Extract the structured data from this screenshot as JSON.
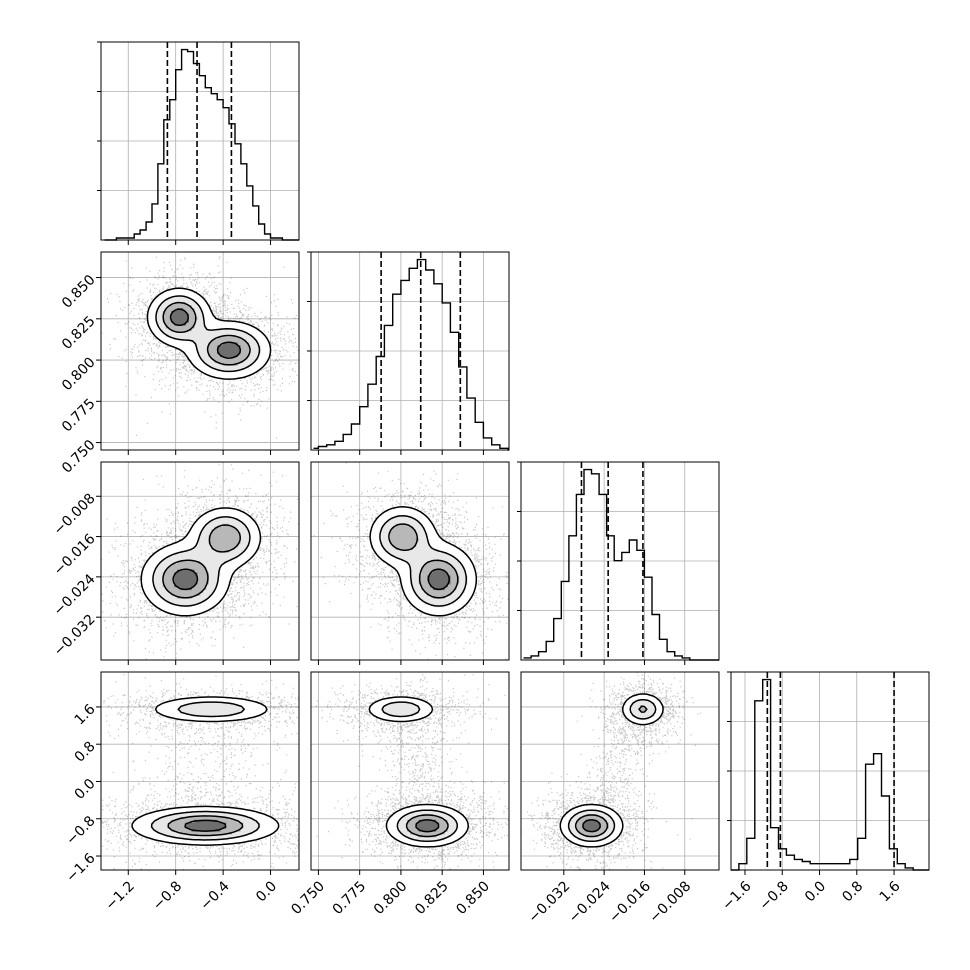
{
  "chart_data": {
    "type": "corner",
    "parameters": 4,
    "grid": true,
    "histograms": [
      {
        "param": 0,
        "bins": [
          -1.4,
          -1.35,
          -1.3,
          -1.25,
          -1.2,
          -1.15,
          -1.1,
          -1.05,
          -1.0,
          -0.95,
          -0.9,
          -0.85,
          -0.8,
          -0.75,
          -0.7,
          -0.65,
          -0.6,
          -0.55,
          -0.5,
          -0.45,
          -0.4,
          -0.35,
          -0.3,
          -0.25,
          -0.2,
          -0.15,
          -0.1,
          -0.05,
          0.0,
          0.05,
          0.1,
          0.15,
          0.2,
          0.25
        ],
        "counts": [
          0,
          0,
          1,
          1,
          1,
          3,
          5,
          9,
          18,
          38,
          60,
          70,
          85,
          95,
          94,
          88,
          82,
          76,
          73,
          70,
          66,
          58,
          48,
          38,
          27,
          17,
          8,
          3,
          1,
          1,
          0,
          0,
          0
        ],
        "quantiles": [
          -0.87,
          -0.62,
          -0.33
        ]
      },
      {
        "param": 1,
        "bins": [
          0.747,
          0.75,
          0.755,
          0.76,
          0.765,
          0.77,
          0.775,
          0.78,
          0.785,
          0.79,
          0.795,
          0.8,
          0.805,
          0.81,
          0.815,
          0.82,
          0.825,
          0.83,
          0.835,
          0.84,
          0.845,
          0.85,
          0.855,
          0.86,
          0.865,
          0.87
        ],
        "counts": [
          1,
          2,
          3,
          5,
          9,
          15,
          25,
          38,
          54,
          72,
          90,
          98,
          105,
          110,
          104,
          96,
          85,
          68,
          48,
          30,
          16,
          7,
          3,
          1,
          0
        ],
        "quantiles": [
          0.788,
          0.812,
          0.836
        ]
      },
      {
        "param": 2,
        "bins": [
          -0.04,
          -0.0385,
          -0.037,
          -0.0355,
          -0.034,
          -0.0325,
          -0.031,
          -0.0295,
          -0.028,
          -0.0265,
          -0.025,
          -0.0235,
          -0.022,
          -0.0205,
          -0.019,
          -0.0175,
          -0.016,
          -0.0145,
          -0.013,
          -0.0115,
          -0.01,
          -0.0085,
          -0.007,
          -0.0055,
          -0.004,
          -0.0025,
          -0.001
        ],
        "counts": [
          1,
          2,
          4,
          9,
          20,
          38,
          60,
          80,
          92,
          90,
          80,
          60,
          48,
          52,
          58,
          53,
          40,
          22,
          10,
          4,
          2,
          1,
          0,
          0,
          0,
          0
        ],
        "quantiles": [
          -0.0285,
          -0.0232,
          -0.0163
        ]
      },
      {
        "param": 3,
        "bins": [
          -1.9,
          -1.73,
          -1.56,
          -1.39,
          -1.22,
          -1.05,
          -0.88,
          -0.71,
          -0.54,
          -0.37,
          -0.2,
          -0.03,
          0.14,
          0.31,
          0.48,
          0.65,
          0.82,
          0.99,
          1.16,
          1.33,
          1.5,
          1.67,
          1.84,
          2.01,
          2.18,
          2.35
        ],
        "counts": [
          0,
          3,
          15,
          80,
          90,
          20,
          10,
          7,
          5,
          4,
          3,
          3,
          3,
          3,
          3,
          5,
          15,
          50,
          55,
          35,
          10,
          3,
          1,
          0,
          0
        ],
        "quantiles": [
          -1.12,
          -0.84,
          1.6
        ]
      }
    ],
    "blobs": {
      "1-0": [
        {
          "x": -0.77,
          "y": 0.826,
          "sx": 0.13,
          "sy": 0.0085,
          "r": 0.0,
          "w": 0.5
        },
        {
          "x": -0.35,
          "y": 0.806,
          "sx": 0.17,
          "sy": 0.0085,
          "r": -0.3,
          "w": 0.5
        }
      ],
      "2-0": [
        {
          "x": -0.72,
          "y": -0.0245,
          "sx": 0.18,
          "sy": 0.0035,
          "r": 0.0,
          "w": 0.55
        },
        {
          "x": -0.38,
          "y": -0.0162,
          "sx": 0.15,
          "sy": 0.003,
          "r": -0.2,
          "w": 0.45
        }
      ],
      "2-1": [
        {
          "x": 0.823,
          "y": -0.0245,
          "sx": 0.011,
          "sy": 0.0035,
          "r": 0.2,
          "w": 0.55
        },
        {
          "x": 0.801,
          "y": -0.016,
          "sx": 0.01,
          "sy": 0.003,
          "r": -0.2,
          "w": 0.45
        }
      ],
      "3-0": [
        {
          "x": -0.55,
          "y": -0.95,
          "sx": 0.3,
          "sy": 0.2,
          "r": 0.5,
          "w": 0.65
        },
        {
          "x": -0.5,
          "y": 1.55,
          "sx": 0.27,
          "sy": 0.15,
          "r": 0.5,
          "w": 0.35
        }
      ],
      "3-1": [
        {
          "x": 0.816,
          "y": -0.95,
          "sx": 0.012,
          "sy": 0.22,
          "r": 0.0,
          "w": 0.65
        },
        {
          "x": 0.8,
          "y": 1.55,
          "sx": 0.011,
          "sy": 0.15,
          "r": 0.4,
          "w": 0.35
        }
      ],
      "3-2": [
        {
          "x": -0.0265,
          "y": -0.95,
          "sx": 0.003,
          "sy": 0.22,
          "r": 0.2,
          "w": 0.62
        },
        {
          "x": -0.0163,
          "y": 1.55,
          "sx": 0.0022,
          "sy": 0.18,
          "r": -0.3,
          "w": 0.38
        }
      ]
    },
    "axes": [
      {
        "param": 0,
        "range": [
          -1.43,
          0.24
        ],
        "ticks": [
          "-1.2",
          "-0.8",
          "-0.4",
          "0.0"
        ],
        "tick_values": [
          -1.2,
          -0.8,
          -0.4,
          0.0
        ]
      },
      {
        "param": 1,
        "range": [
          0.7455,
          0.8655
        ],
        "ticks": [
          "0.750",
          "0.775",
          "0.800",
          "0.825",
          "0.850"
        ],
        "tick_values": [
          0.75,
          0.775,
          0.8,
          0.825,
          0.85
        ]
      },
      {
        "param": 2,
        "range": [
          -0.0405,
          -0.0012
        ],
        "ticks": [
          "−0.008",
          "−0.016",
          "−0.024",
          "−0.032"
        ],
        "tick_values": [
          -0.008,
          -0.016,
          -0.024,
          -0.032
        ]
      },
      {
        "param": 3,
        "range": [
          -1.9,
          2.35
        ],
        "ticks": [
          "1.6",
          "0.8",
          "0.0",
          "−0.8",
          "−1.6"
        ],
        "tick_values": [
          1.6,
          0.8,
          0.0,
          -0.8,
          -1.6
        ]
      }
    ],
    "x_tick_labels": {
      "0": [
        "−1.2",
        "−0.8",
        "−0.4",
        "0.0"
      ],
      "1": [
        "0.750",
        "0.775",
        "0.800",
        "0.825",
        "0.850"
      ],
      "2": [
        "−0.032",
        "−0.024",
        "−0.016",
        "−0.008"
      ],
      "3": [
        "−1.6",
        "−0.8",
        "0.0",
        "0.8",
        "1.6"
      ]
    },
    "y_tick_labels": {
      "1": [
        "0.850",
        "0.825",
        "0.800",
        "0.775",
        "0.750"
      ],
      "2": [
        "−0.008",
        "−0.016",
        "−0.024",
        "−0.032"
      ],
      "3": [
        "1.6",
        "0.8",
        "0.0",
        "−0.8",
        "−1.6"
      ]
    },
    "title": "",
    "xlabel": "",
    "ylabel": ""
  }
}
